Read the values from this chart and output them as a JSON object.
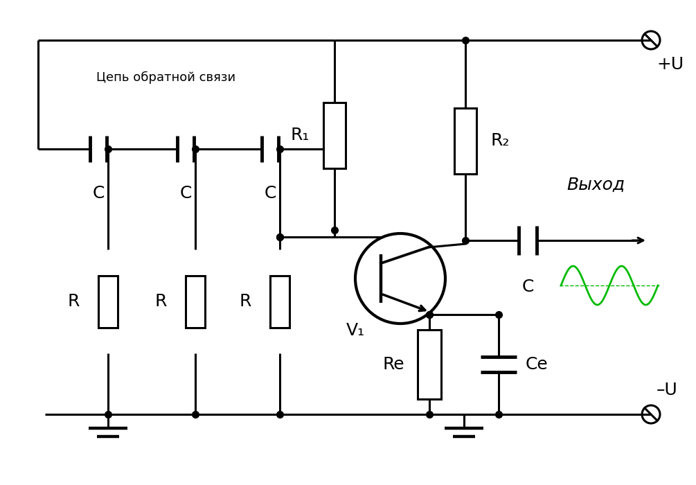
{
  "bg_color": "#ffffff",
  "line_color": "#000000",
  "green_color": "#00bb00",
  "text_feedback": "Цепь обратной связи",
  "text_output": "Выход",
  "text_plusU": "+U",
  "text_minusU": "–U",
  "label_C": "C",
  "label_R": "R",
  "label_R1": "R₁",
  "label_R2": "R₂",
  "label_Re": "Re",
  "label_Ce": "Ce",
  "label_V1": "V₁",
  "figsize": [
    10.05,
    7.0
  ],
  "dpi": 100
}
